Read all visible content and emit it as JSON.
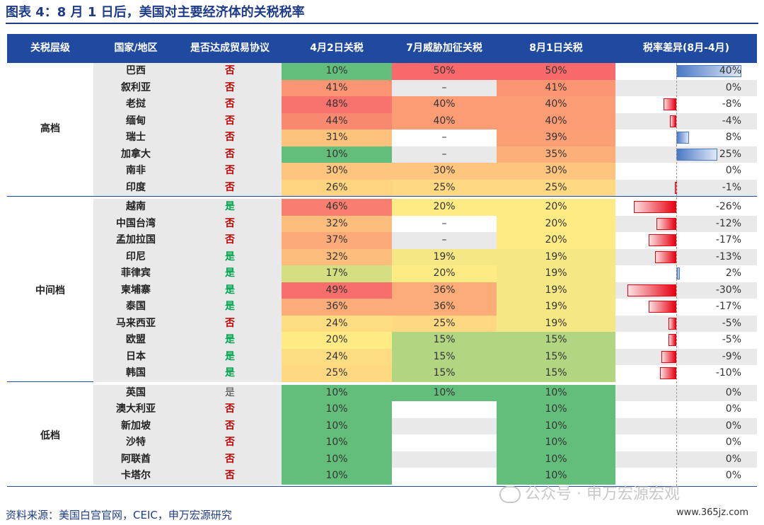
{
  "title": "图表 4：8 月 1 日后，美国对主要经济体的关税税率",
  "headers": [
    "关税层级",
    "国家/地区",
    "是否达成贸易协议",
    "4月2日关税",
    "7月威胁加征关税",
    "8月1日关税",
    "税率差异(8月-4月)"
  ],
  "tiers": [
    "高档",
    "中间档",
    "低档"
  ],
  "colors": {
    "header_bg": "#1f4aa0",
    "yes": "#00a650",
    "no": "#c00000",
    "neutral": "#444444"
  },
  "rows": [
    {
      "country": "巴西",
      "agreement": "否",
      "apr": "10%",
      "jul": "50%",
      "aug": "50%",
      "diff": "40%",
      "d": 40,
      "ca": "#63be7b",
      "cj": "#f8696b",
      "cg": "#f8696b"
    },
    {
      "country": "叙利亚",
      "agreement": "否",
      "apr": "41%",
      "jul": "–",
      "aug": "41%",
      "diff": "0%",
      "d": 0,
      "ca": "#fa9473",
      "cj": "#e9e9e9",
      "cg": "#fa9473"
    },
    {
      "country": "老挝",
      "agreement": "否",
      "apr": "48%",
      "jul": "40%",
      "aug": "40%",
      "diff": "-8%",
      "d": -8,
      "ca": "#f8736d",
      "cj": "#fb9c75",
      "cg": "#fb9c75"
    },
    {
      "country": "缅甸",
      "agreement": "否",
      "apr": "44%",
      "jul": "40%",
      "aug": "40%",
      "diff": "-4%",
      "d": -4,
      "ca": "#f98870",
      "cj": "#fb9c75",
      "cg": "#fb9c75"
    },
    {
      "country": "瑞士",
      "agreement": "否",
      "apr": "31%",
      "jul": "–",
      "aug": "39%",
      "diff": "8%",
      "d": 8,
      "ca": "#fdc37d",
      "cj": "#ffffff",
      "cg": "#fb9f75"
    },
    {
      "country": "加拿大",
      "agreement": "否",
      "apr": "10%",
      "jul": "–",
      "aug": "35%",
      "diff": "25%",
      "d": 25,
      "ca": "#63be7b",
      "cj": "#e9e9e9",
      "cg": "#fcaf79"
    },
    {
      "country": "南非",
      "agreement": "否",
      "apr": "30%",
      "jul": "30%",
      "aug": "30%",
      "diff": "0%",
      "d": 0,
      "ca": "#fdc57e",
      "cj": "#fdc57e",
      "cg": "#fdc57e"
    },
    {
      "country": "印度",
      "agreement": "否",
      "apr": "26%",
      "jul": "25%",
      "aug": "25%",
      "diff": "-1%",
      "d": -1,
      "ca": "#fed480",
      "cj": "#fed981",
      "cg": "#fed981"
    },
    {
      "country": "越南",
      "agreement": "是",
      "apr": "46%",
      "jul": "20%",
      "aug": "20%",
      "diff": "-26%",
      "d": -26,
      "ca": "#f97e6f",
      "cj": "#ffeb84",
      "cg": "#ffeb84"
    },
    {
      "country": "中国台湾",
      "agreement": "否",
      "apr": "32%",
      "jul": "–",
      "aug": "20%",
      "diff": "-12%",
      "d": -12,
      "ca": "#fdbd7c",
      "cj": "#ffffff",
      "cg": "#ffeb84"
    },
    {
      "country": "孟加拉国",
      "agreement": "否",
      "apr": "37%",
      "jul": "–",
      "aug": "20%",
      "diff": "-17%",
      "d": -17,
      "ca": "#fbaa78",
      "cj": "#e9e9e9",
      "cg": "#ffeb84"
    },
    {
      "country": "印尼",
      "agreement": "是",
      "apr": "32%",
      "jul": "19%",
      "aug": "19%",
      "diff": "-13%",
      "d": -13,
      "ca": "#fdbd7c",
      "cj": "#f5e884",
      "cg": "#f5e884"
    },
    {
      "country": "菲律宾",
      "agreement": "是",
      "apr": "17%",
      "jul": "20%",
      "aug": "19%",
      "diff": "2%",
      "d": 2,
      "ca": "#d5df82",
      "cj": "#ffeb84",
      "cg": "#f5e884"
    },
    {
      "country": "柬埔寨",
      "agreement": "是",
      "apr": "49%",
      "jul": "36%",
      "aug": "19%",
      "diff": "-30%",
      "d": -30,
      "ca": "#f86e6c",
      "cj": "#fbac78",
      "cg": "#f5e884"
    },
    {
      "country": "泰国",
      "agreement": "是",
      "apr": "36%",
      "jul": "36%",
      "aug": "19%",
      "diff": "-17%",
      "d": -17,
      "ca": "#fbac78",
      "cj": "#fbac78",
      "cg": "#f5e884"
    },
    {
      "country": "马来西亚",
      "agreement": "否",
      "apr": "24%",
      "jul": "25%",
      "aug": "19%",
      "diff": "-5%",
      "d": -5,
      "ca": "#fedd82",
      "cj": "#fed981",
      "cg": "#f5e884"
    },
    {
      "country": "欧盟",
      "agreement": "是",
      "apr": "20%",
      "jul": "15%",
      "aug": "15%",
      "diff": "-5%",
      "d": -5,
      "ca": "#ffeb84",
      "cj": "#b1d580",
      "cg": "#b1d580"
    },
    {
      "country": "日本",
      "agreement": "是",
      "apr": "24%",
      "jul": "15%",
      "aug": "15%",
      "diff": "-9%",
      "d": -9,
      "ca": "#fedd82",
      "cj": "#b1d580",
      "cg": "#b1d580"
    },
    {
      "country": "韩国",
      "agreement": "是",
      "apr": "25%",
      "jul": "15%",
      "aug": "15%",
      "diff": "-10%",
      "d": -10,
      "ca": "#fed981",
      "cj": "#b1d580",
      "cg": "#b1d580"
    },
    {
      "country": "英国",
      "agreement": "是",
      "apr": "10%",
      "jul": "10%",
      "aug": "10%",
      "diff": "0%",
      "d": 0,
      "ca": "#63be7b",
      "cj": "#63be7b",
      "cg": "#63be7b"
    },
    {
      "country": "澳大利亚",
      "agreement": "否",
      "apr": "10%",
      "jul": "",
      "aug": "10%",
      "diff": "0%",
      "d": 0,
      "ca": "#63be7b",
      "cj": "#ffffff",
      "cg": "#63be7b"
    },
    {
      "country": "新加坡",
      "agreement": "否",
      "apr": "10%",
      "jul": "",
      "aug": "10%",
      "diff": "0%",
      "d": 0,
      "ca": "#63be7b",
      "cj": "#e9e9e9",
      "cg": "#63be7b"
    },
    {
      "country": "沙特",
      "agreement": "否",
      "apr": "10%",
      "jul": "",
      "aug": "10%",
      "diff": "0%",
      "d": 0,
      "ca": "#63be7b",
      "cj": "#ffffff",
      "cg": "#63be7b"
    },
    {
      "country": "阿联酋",
      "agreement": "否",
      "apr": "10%",
      "jul": "",
      "aug": "10%",
      "diff": "0%",
      "d": 0,
      "ca": "#63be7b",
      "cj": "#e9e9e9",
      "cg": "#63be7b"
    },
    {
      "country": "卡塔尔",
      "agreement": "否",
      "apr": "10%",
      "jul": "",
      "aug": "10%",
      "diff": "0%",
      "d": 0,
      "ca": "#63be7b",
      "cj": "#ffffff",
      "cg": "#63be7b"
    }
  ],
  "source": "资料来源：美国白宫官网，CEIC，申万宏源研究",
  "watermark": "公众号 · 申万宏源宏观",
  "site": "www.365jz.com"
}
